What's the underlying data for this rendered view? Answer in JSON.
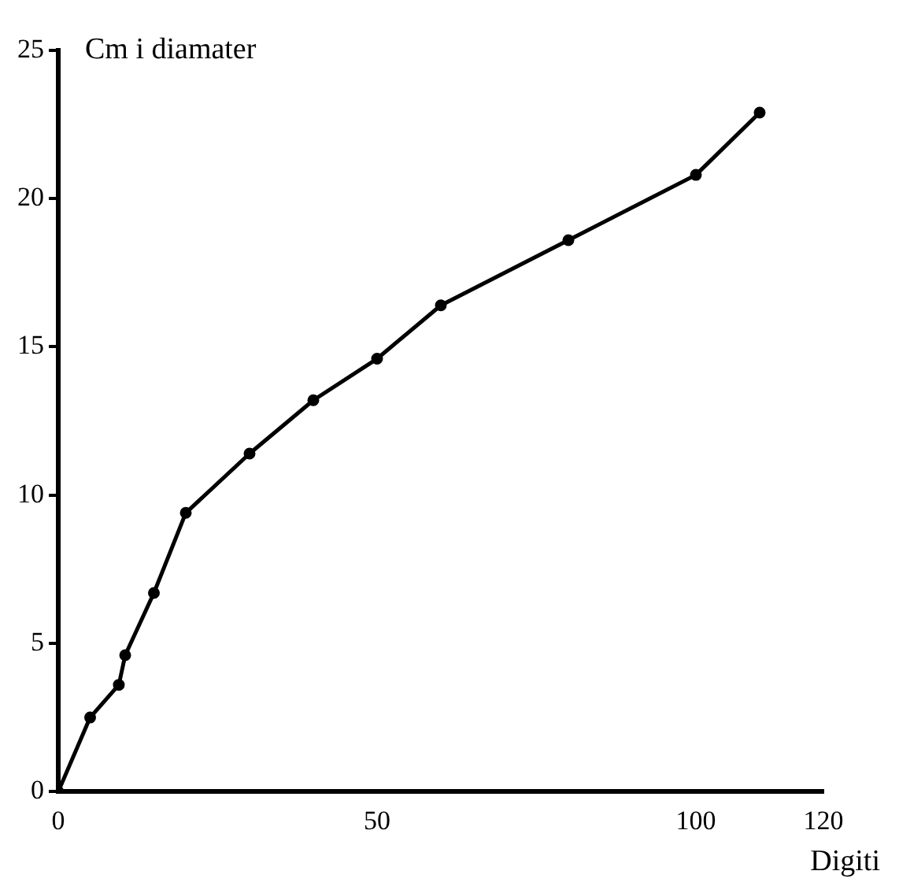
{
  "chart_data": {
    "type": "line",
    "xlabel": "Digiti",
    "ylabel": "Cm i diamater",
    "x": [
      0,
      5,
      9.5,
      10.5,
      15,
      20,
      30,
      40,
      50,
      60,
      80,
      100,
      110
    ],
    "series": [
      {
        "color": "#000000",
        "values": [
          0,
          2.5,
          3.6,
          4.6,
          6.7,
          9.4,
          11.4,
          13.2,
          14.6,
          16.4,
          18.6,
          20.8,
          22.9
        ]
      }
    ],
    "xlim": [
      0,
      120
    ],
    "xticks": [
      0,
      50,
      100,
      120
    ],
    "ylim": [
      0,
      25
    ],
    "yticks": [
      0,
      5,
      10,
      15,
      20,
      25
    ],
    "grid": false,
    "legend": false,
    "marker": "circle",
    "line_style": "solid"
  }
}
